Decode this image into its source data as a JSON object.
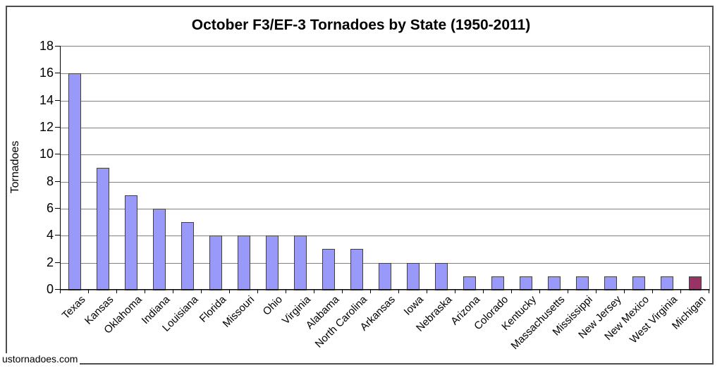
{
  "title": "October F3/EF-3 Tornadoes by State (1950-2011)",
  "watermark": "ustornadoes.com",
  "chart_data": {
    "type": "bar",
    "title": "October F3/EF-3 Tornadoes by State (1950-2011)",
    "xlabel": "",
    "ylabel": "Tornadoes",
    "ylim": [
      0,
      18
    ],
    "yticks": [
      0,
      2,
      4,
      6,
      8,
      10,
      12,
      14,
      16,
      18
    ],
    "grid": true,
    "legend": "none",
    "categories": [
      "Texas",
      "Kansas",
      "Oklahoma",
      "Indiana",
      "Louisiana",
      "Florida",
      "Missouri",
      "Ohio",
      "Virginia",
      "Alabama",
      "North Carolina",
      "Arkansas",
      "Iowa",
      "Nebraska",
      "Arizona",
      "Colorado",
      "Kentucky",
      "Massachusetts",
      "Mississippi",
      "New Jersey",
      "New Mexico",
      "West Virginia",
      "Michigan"
    ],
    "values": [
      16,
      9,
      7,
      6,
      5,
      4,
      4,
      4,
      4,
      3,
      3,
      2,
      2,
      2,
      1,
      1,
      1,
      1,
      1,
      1,
      1,
      1,
      1
    ],
    "bar_color_default": "#9999FA",
    "bar_color_highlight": "#993366",
    "highlight_category": "Michigan"
  },
  "colors": {
    "gridline": "#808080",
    "axis": "#000000",
    "plot_border": "#808080",
    "frame_border": "#4d4d4d",
    "bar_border": "#404040",
    "background": "#ffffff"
  }
}
